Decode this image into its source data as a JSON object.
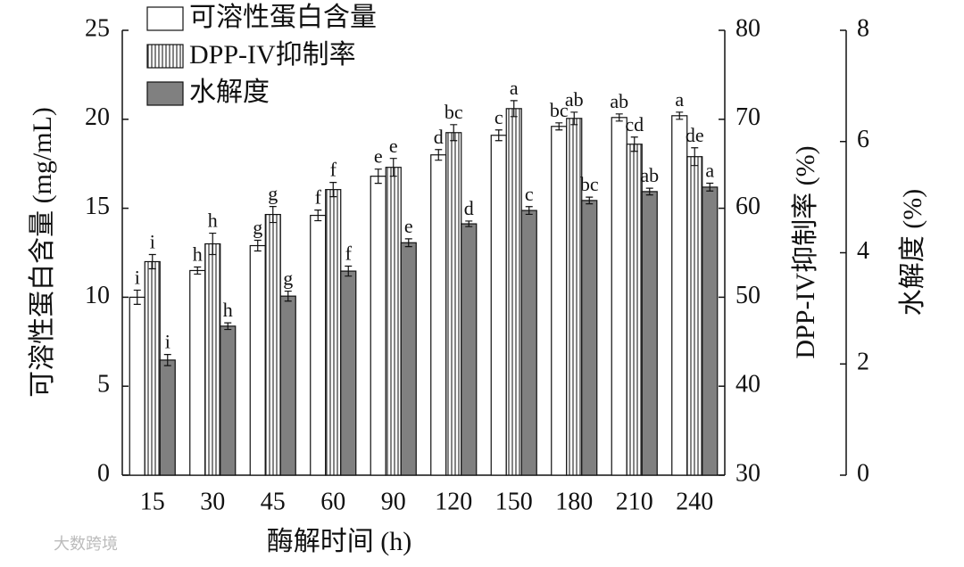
{
  "chart_data": {
    "type": "bar",
    "x_label": "酶解时间 (h)",
    "y_label": "可溶性蛋白含量 (mg/mL)",
    "y2_label": "DPP-IV抑制率 (%)",
    "y3_label": "水解度 (%)",
    "categories": [
      "15",
      "30",
      "45",
      "60",
      "90",
      "120",
      "150",
      "180",
      "210",
      "240"
    ],
    "ylim": [
      0,
      25
    ],
    "yticks": [
      0,
      5,
      10,
      15,
      20,
      25
    ],
    "y2lim": [
      30,
      80
    ],
    "y2ticks": [
      30,
      40,
      50,
      60,
      70,
      80
    ],
    "y3lim": [
      0,
      8
    ],
    "y3ticks": [
      0,
      2,
      4,
      6,
      8
    ],
    "legend": "top-left",
    "series": [
      {
        "name": "可溶性蛋白含量",
        "color": "#ffffff",
        "axis": "y",
        "values": [
          10.0,
          11.5,
          12.9,
          14.6,
          16.8,
          18.0,
          19.1,
          19.6,
          20.1,
          20.2
        ],
        "errors": [
          0.4,
          0.2,
          0.3,
          0.3,
          0.4,
          0.3,
          0.3,
          0.2,
          0.2,
          0.2
        ],
        "letters": [
          "i",
          "h",
          "g",
          "f",
          "e",
          "d",
          "c",
          "bc",
          "ab",
          "a"
        ]
      },
      {
        "name": "DPP-IV抑制率",
        "color": "#dddddd",
        "axis": "y2",
        "pattern": "vertical-stripes",
        "values": [
          54.0,
          56.0,
          59.3,
          62.1,
          64.6,
          68.5,
          71.2,
          70.1,
          67.2,
          65.8
        ],
        "errors": [
          0.8,
          1.2,
          0.9,
          0.8,
          1.0,
          0.9,
          0.9,
          0.7,
          0.8,
          1.0
        ],
        "letters": [
          "i",
          "h",
          "g",
          "f",
          "e",
          "bc",
          "a",
          "ab",
          "cd",
          "de"
        ]
      },
      {
        "name": "水解度",
        "color": "#808080",
        "axis": "y3",
        "values": [
          2.07,
          2.68,
          3.22,
          3.67,
          4.18,
          4.52,
          4.76,
          4.94,
          5.1,
          5.18
        ],
        "errors": [
          0.1,
          0.06,
          0.09,
          0.09,
          0.07,
          0.05,
          0.07,
          0.06,
          0.06,
          0.07
        ],
        "letters": [
          "i",
          "h",
          "g",
          "f",
          "e",
          "d",
          "c",
          "bc",
          "ab",
          "a"
        ]
      }
    ]
  },
  "watermark": "大数跨境"
}
